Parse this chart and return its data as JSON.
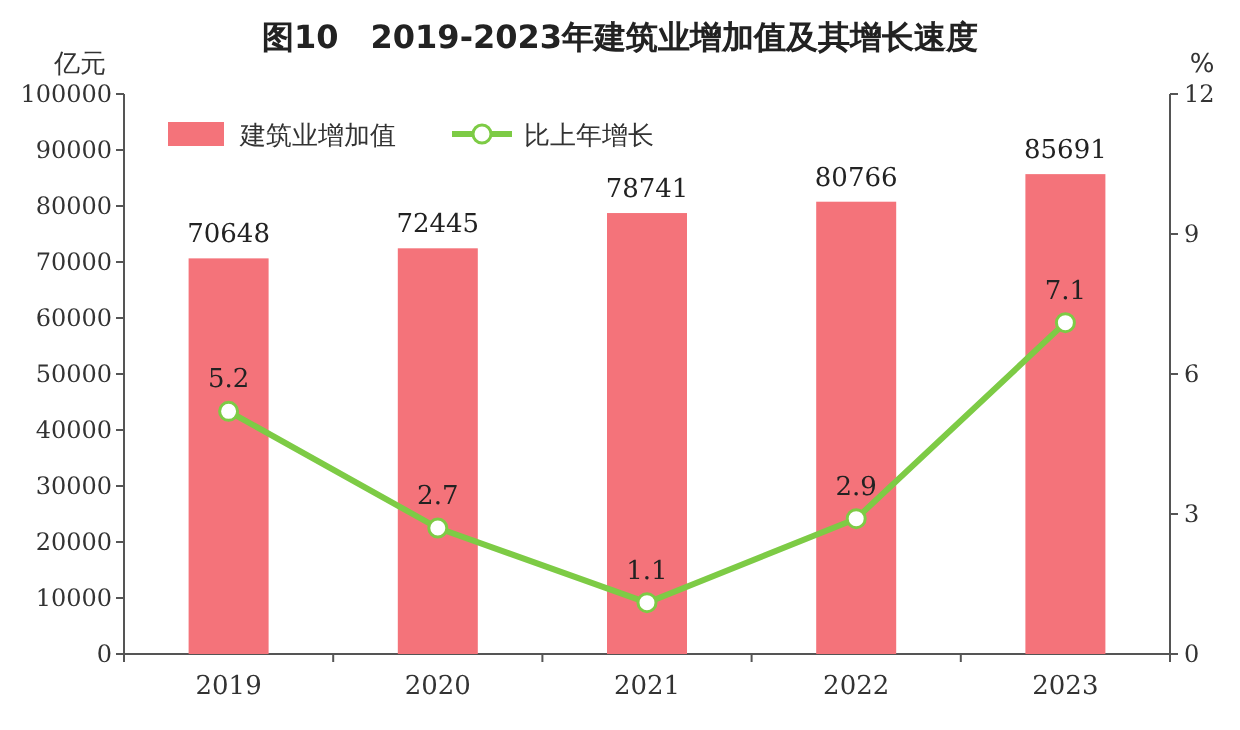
{
  "chart_data": {
    "type": "bar",
    "title": "图10　2019-2023年建筑业增加值及其增长速度",
    "ylabel": "亿元",
    "y2label": "%",
    "categories": [
      "2019",
      "2020",
      "2021",
      "2022",
      "2023"
    ],
    "series": [
      {
        "name": "建筑业增加值",
        "color": "#f4737a",
        "values": [
          70648,
          72445,
          78741,
          80766,
          85691
        ]
      },
      {
        "name": "比上年增长",
        "type": "line",
        "axis": "y2",
        "color": "#7dcb45",
        "values": [
          5.2,
          2.7,
          1.1,
          2.9,
          7.1
        ]
      }
    ],
    "ylim": [
      0,
      100000
    ],
    "yticks": [
      0,
      10000,
      20000,
      30000,
      40000,
      50000,
      60000,
      70000,
      80000,
      90000,
      100000
    ],
    "y2lim": [
      0,
      12
    ],
    "y2ticks": [
      0,
      3,
      6,
      9,
      12
    ],
    "data_labels": true,
    "legend": "top left",
    "marker": "circle",
    "grid": false
  }
}
